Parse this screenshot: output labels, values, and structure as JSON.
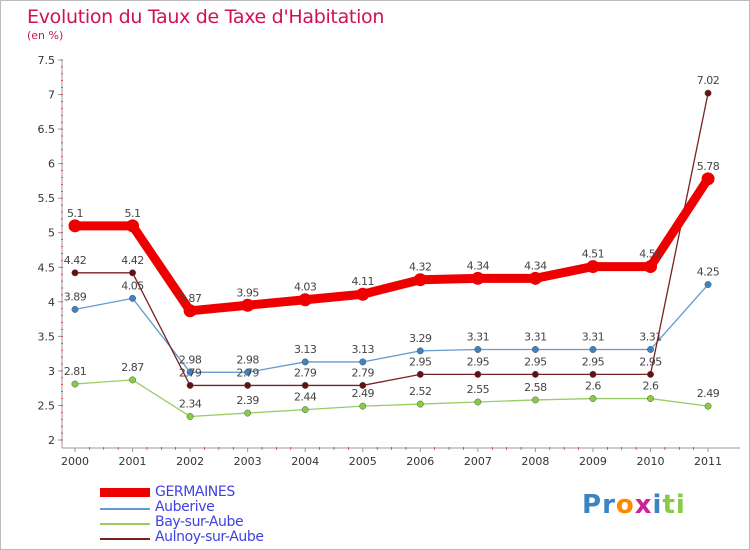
{
  "chart_data": {
    "type": "line",
    "title": "Evolution du Taux de Taxe d'Habitation",
    "subtitle": "(en %)",
    "x": [
      "2000",
      "2001",
      "2002",
      "2003",
      "2004",
      "2005",
      "2006",
      "2007",
      "2008",
      "2009",
      "2010",
      "2011"
    ],
    "ylim": [
      2,
      7.5
    ],
    "yticks": [
      "2",
      "2.5",
      "3",
      "3.5",
      "4",
      "4.5",
      "5",
      "5.5",
      "6",
      "6.5",
      "7",
      "7.5"
    ],
    "grid": false,
    "legend_position": "bottom-left",
    "series": [
      {
        "name": "GERMAINES",
        "color": "#ee0000",
        "style": "thick",
        "values": [
          5.1,
          5.1,
          3.87,
          3.95,
          4.03,
          4.11,
          4.32,
          4.34,
          4.34,
          4.51,
          4.51,
          5.78
        ],
        "labels": [
          "5.1",
          "5.1",
          "3.87",
          "3.95",
          "4.03",
          "4.11",
          "4.32",
          "4.34",
          "4.34",
          "4.51",
          "4.51",
          "5.78"
        ]
      },
      {
        "name": "Auberive",
        "color": "#6699cc",
        "marker": "#3b83c4",
        "values": [
          3.89,
          4.05,
          2.98,
          2.98,
          3.13,
          3.13,
          3.29,
          3.31,
          3.31,
          3.31,
          3.31,
          4.25
        ],
        "labels": [
          "3.89",
          "4.05",
          "2.98",
          "2.98",
          "3.13",
          "3.13",
          "3.29",
          "3.31",
          "3.31",
          "3.31",
          "3.31",
          "4.25"
        ]
      },
      {
        "name": "Bay-sur-Aube",
        "color": "#99cc66",
        "marker": "#88cc44",
        "values": [
          2.81,
          2.87,
          2.34,
          2.39,
          2.44,
          2.49,
          2.52,
          2.55,
          2.58,
          2.6,
          2.6,
          2.49
        ],
        "labels": [
          "2.81",
          "2.87",
          "2.34",
          "2.39",
          "2.44",
          "2.49",
          "2.52",
          "2.55",
          "2.58",
          "2.6",
          "2.6",
          "2.49"
        ]
      },
      {
        "name": "Aulnoy-sur-Aube",
        "color": "#772222",
        "marker": "#661111",
        "values": [
          4.42,
          4.42,
          2.79,
          2.79,
          2.79,
          2.79,
          2.95,
          2.95,
          2.95,
          2.95,
          2.95,
          7.02
        ],
        "labels": [
          "4.42",
          "4.42",
          "2.79",
          "2.79",
          "2.79",
          "2.79",
          "2.95",
          "2.95",
          "2.95",
          "2.95",
          "2.95",
          "7.02"
        ]
      }
    ]
  },
  "legend": {
    "items": [
      {
        "label": "GERMAINES"
      },
      {
        "label": "Auberive"
      },
      {
        "label": "Bay-sur-Aube"
      },
      {
        "label": "Aulnoy-sur-Aube"
      }
    ]
  },
  "logo": {
    "letters": [
      "P",
      "r",
      "o",
      "x",
      "i",
      "t",
      "i"
    ],
    "colors": [
      "#3b83c4",
      "#3b83c4",
      "#ff8800",
      "#cc2299",
      "#3b83c4",
      "#88cc44",
      "#88cc44"
    ]
  },
  "colors": {
    "title": "#d0105a",
    "frame": "#bbbbbb",
    "axis": "#999999",
    "tick_red": "#ee0000"
  }
}
